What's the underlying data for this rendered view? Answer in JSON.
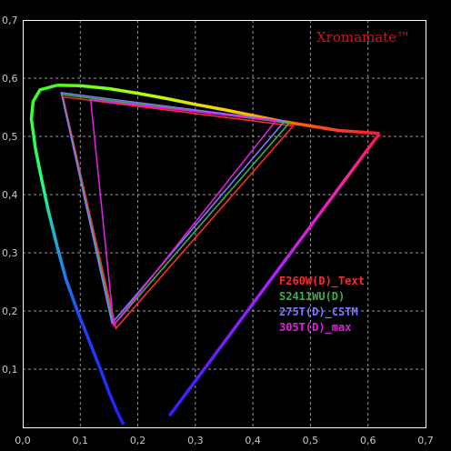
{
  "chart_data": {
    "type": "scatter",
    "brand": "Xromamate™",
    "xlim": [
      0,
      0.7
    ],
    "ylim": [
      0,
      0.7
    ],
    "xticks": [
      "0,0",
      "0,1",
      "0,2",
      "0,3",
      "0,4",
      "0,5",
      "0,6",
      "0,7"
    ],
    "yticks": [
      "0,1",
      "0,2",
      "0,3",
      "0,4",
      "0,5",
      "0,6",
      "0,7"
    ],
    "grid": true,
    "spectral_locus": [
      [
        0.175,
        0.005
      ],
      [
        0.165,
        0.025
      ],
      [
        0.15,
        0.06
      ],
      [
        0.135,
        0.1
      ],
      [
        0.115,
        0.15
      ],
      [
        0.095,
        0.2
      ],
      [
        0.075,
        0.255
      ],
      [
        0.06,
        0.31
      ],
      [
        0.045,
        0.37
      ],
      [
        0.033,
        0.425
      ],
      [
        0.022,
        0.48
      ],
      [
        0.015,
        0.53
      ],
      [
        0.018,
        0.56
      ],
      [
        0.03,
        0.58
      ],
      [
        0.06,
        0.588
      ],
      [
        0.1,
        0.587
      ],
      [
        0.15,
        0.582
      ],
      [
        0.2,
        0.574
      ],
      [
        0.25,
        0.565
      ],
      [
        0.3,
        0.555
      ],
      [
        0.35,
        0.546
      ],
      [
        0.4,
        0.536
      ],
      [
        0.45,
        0.526
      ],
      [
        0.5,
        0.518
      ],
      [
        0.55,
        0.51
      ],
      [
        0.62,
        0.505
      ]
    ],
    "purple_line_end": [
      0.255,
      0.02
    ],
    "series": [
      {
        "name": "F260W(D)_Text",
        "color": "#ff2a2a",
        "points": [
          [
            0.47,
            0.518
          ],
          [
            0.162,
            0.17
          ],
          [
            0.07,
            0.568
          ]
        ]
      },
      {
        "name": "S2411WU(D)",
        "color": "#3cb043",
        "points": [
          [
            0.463,
            0.523
          ],
          [
            0.158,
            0.176
          ],
          [
            0.068,
            0.572
          ]
        ]
      },
      {
        "name": "275T(D)_CSTM",
        "color": "#7a7aff",
        "points": [
          [
            0.455,
            0.526
          ],
          [
            0.155,
            0.179
          ],
          [
            0.067,
            0.575
          ]
        ]
      },
      {
        "name": "305T(D)_max",
        "color": "#e020e0",
        "points": [
          [
            0.44,
            0.527
          ],
          [
            0.158,
            0.176
          ],
          [
            0.118,
            0.563
          ]
        ]
      }
    ],
    "legend_position": "center-right"
  }
}
